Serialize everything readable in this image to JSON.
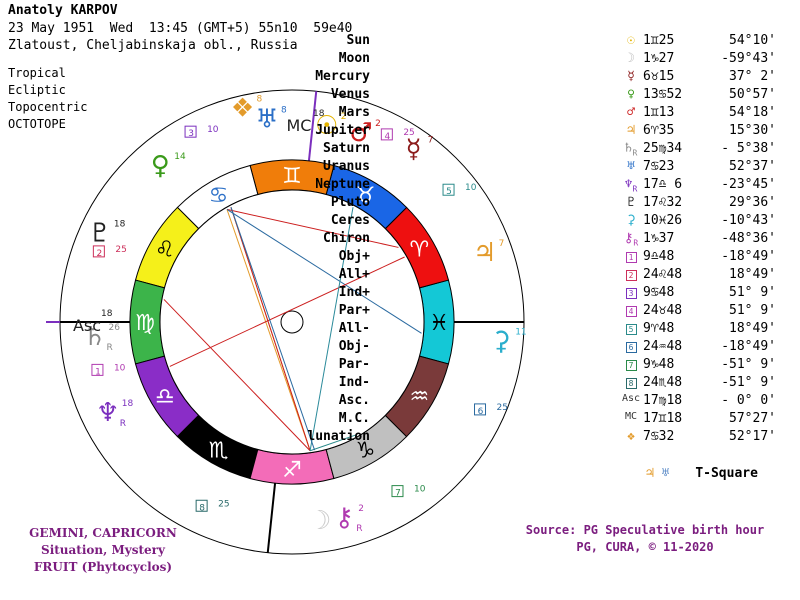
{
  "header": {
    "name": "Anatoly KARPOV",
    "date_line": "23 May 1951  Wed  13:45 (GMT+5) 55n10  59e40",
    "place_line": "Zlatoust, Cheljabinskaja obl., Russia"
  },
  "system": [
    "Tropical",
    "Ecliptic",
    "Topocentric",
    "OCTOTOPE"
  ],
  "positions": [
    {
      "name": "Sun",
      "glyph": "☉",
      "color": "#e3b300",
      "pos": "1♊25",
      "lat": "54°10'"
    },
    {
      "name": "Moon",
      "glyph": "☽",
      "color": "#bbbbbb",
      "pos": "1♑27",
      "lat": "-59°43'"
    },
    {
      "name": "Mercury",
      "glyph": "☿",
      "color": "#8b1a1a",
      "pos": "6♉15",
      "lat": "37° 2'"
    },
    {
      "name": "Venus",
      "glyph": "♀",
      "color": "#3a9a1a",
      "pos": "13♋52",
      "lat": "50°57'"
    },
    {
      "name": "Mars",
      "glyph": "♂",
      "color": "#cc1f1f",
      "pos": "1♊13",
      "lat": "54°18'"
    },
    {
      "name": "Jupiter",
      "glyph": "♃",
      "color": "#e39b2b",
      "pos": "6♈35",
      "lat": "15°30'"
    },
    {
      "name": "Saturn",
      "glyph": "♄",
      "color": "#888888",
      "pos": "25♍34",
      "lat": "- 5°38'",
      "retro": "R"
    },
    {
      "name": "Uranus",
      "glyph": "♅",
      "color": "#2b6fc7",
      "pos": "7♋23",
      "lat": "52°37'"
    },
    {
      "name": "Neptune",
      "glyph": "♆",
      "color": "#7b2fbe",
      "pos": "17♎ 6",
      "lat": "-23°45'",
      "retro": "R"
    },
    {
      "name": "Pluto",
      "glyph": "♇",
      "color": "#222222",
      "pos": "17♌32",
      "lat": "29°36'"
    },
    {
      "name": "Ceres",
      "glyph": "⚳",
      "color": "#2aaecc",
      "pos": "10♓26",
      "lat": "-10°43'"
    },
    {
      "name": "Chiron",
      "glyph": "⚷",
      "color": "#b03ab0",
      "pos": "1♑37",
      "lat": "-48°36'",
      "retro": "R"
    },
    {
      "name": "Obj+",
      "glyph": "1",
      "box": true,
      "color": "#b03ab0",
      "pos": "9♎48",
      "lat": "-18°49'"
    },
    {
      "name": "All+",
      "glyph": "2",
      "box": true,
      "color": "#cc2f5a",
      "pos": "24♌48",
      "lat": "18°49'"
    },
    {
      "name": "Ind+",
      "glyph": "3",
      "box": true,
      "color": "#7b2fbe",
      "pos": "9♋48",
      "lat": "51° 9'"
    },
    {
      "name": "Par+",
      "glyph": "4",
      "box": true,
      "color": "#b03ab0",
      "pos": "24♉48",
      "lat": "51° 9'"
    },
    {
      "name": "All-",
      "glyph": "5",
      "box": true,
      "color": "#2a8a8a",
      "pos": "9♈48",
      "lat": "18°49'"
    },
    {
      "name": "Obj-",
      "glyph": "6",
      "box": true,
      "color": "#2a6aa0",
      "pos": "24♒48",
      "lat": "-18°49'"
    },
    {
      "name": "Par-",
      "glyph": "7",
      "box": true,
      "color": "#2a8a4a",
      "pos": "9♑48",
      "lat": "-51° 9'"
    },
    {
      "name": "Ind-",
      "glyph": "8",
      "box": true,
      "color": "#2a6a6a",
      "pos": "24♏48",
      "lat": "-51° 9'"
    },
    {
      "name": "Asc.",
      "glyph": "Asc",
      "color": "#333333",
      "pos": "17♍18",
      "lat": "- 0° 0'"
    },
    {
      "name": "M.C.",
      "glyph": "MC",
      "color": "#333333",
      "pos": "17♊18",
      "lat": "57°27'"
    },
    {
      "name": "lunation",
      "glyph": "❖",
      "color": "#e39b2b",
      "pos": "7♋32",
      "lat": "52°17'"
    }
  ],
  "tsquare": {
    "glyphs": [
      "♃",
      "♅"
    ],
    "label": "T-Square"
  },
  "footer_left": [
    "GEMINI, CAPRICORN",
    "Situation, Mystery",
    "FRUIT (Phytocyclos)"
  ],
  "footer_right": [
    "Source: PG Speculative birth hour",
    "PG, CURA, © 11-2020"
  ],
  "zodiac": [
    {
      "glyph": "♈",
      "color": "#ee1010"
    },
    {
      "glyph": "♉",
      "color": "#1a66e6"
    },
    {
      "glyph": "♊",
      "color": "#f07d0a"
    },
    {
      "glyph": "♋",
      "color": "#ffffff"
    },
    {
      "glyph": "♌",
      "color": "#f5f01a"
    },
    {
      "glyph": "♍",
      "color": "#3cb44a"
    },
    {
      "glyph": "♎",
      "color": "#8a2dc7"
    },
    {
      "glyph": "♏",
      "color": "#000000"
    },
    {
      "glyph": "♐",
      "color": "#f36cb8"
    },
    {
      "glyph": "♑",
      "color": "#c0c0c0"
    },
    {
      "glyph": "♒",
      "color": "#7a3a3a"
    },
    {
      "glyph": "♓",
      "color": "#14c8d6"
    }
  ],
  "planet_labels": [
    {
      "glyph": "MC",
      "deg": "18",
      "color": "#222222"
    },
    {
      "glyph": "☉",
      "deg": "2",
      "color": "#e3b300"
    },
    {
      "glyph": "♂",
      "deg": "2",
      "color": "#cc1f1f"
    },
    {
      "glyph": "4",
      "deg": "25",
      "color": "#b03ab0",
      "box": true
    },
    {
      "glyph": "☿",
      "deg": "7",
      "color": "#8b1a1a"
    },
    {
      "glyph": "5",
      "deg": "10",
      "color": "#2a8a8a",
      "box": true
    },
    {
      "glyph": "♃",
      "deg": "7",
      "color": "#e39b2b"
    },
    {
      "glyph": "⚳",
      "deg": "11",
      "color": "#2aaecc"
    },
    {
      "glyph": "6",
      "deg": "25",
      "color": "#2a6aa0",
      "box": true
    },
    {
      "glyph": "7",
      "deg": "10",
      "color": "#2a8a4a",
      "box": true
    },
    {
      "glyph": "⚷",
      "deg": "2",
      "color": "#b03ab0",
      "retro": "R"
    },
    {
      "glyph": "☽",
      "deg": "",
      "color": "#cccccc"
    },
    {
      "glyph": "8",
      "deg": "25",
      "color": "#2a6a6a",
      "box": true
    },
    {
      "glyph": "♆",
      "deg": "18",
      "color": "#7b2fbe",
      "retro": "R"
    },
    {
      "glyph": "1",
      "deg": "10",
      "color": "#b03ab0",
      "box": true
    },
    {
      "glyph": "♄",
      "deg": "26",
      "color": "#888888",
      "retro": "R"
    },
    {
      "glyph": "Asc",
      "deg": "18",
      "color": "#222222"
    },
    {
      "glyph": "2",
      "deg": "25",
      "color": "#cc2f5a",
      "box": true
    },
    {
      "glyph": "♇",
      "deg": "18",
      "color": "#222222"
    },
    {
      "glyph": "♀",
      "deg": "14",
      "color": "#3a9a1a"
    },
    {
      "glyph": "3",
      "deg": "10",
      "color": "#7b2fbe",
      "box": true
    },
    {
      "glyph": "❖",
      "deg": "8",
      "color": "#e39b2b"
    },
    {
      "glyph": "♅",
      "deg": "8",
      "color": "#2b6fc7"
    }
  ]
}
